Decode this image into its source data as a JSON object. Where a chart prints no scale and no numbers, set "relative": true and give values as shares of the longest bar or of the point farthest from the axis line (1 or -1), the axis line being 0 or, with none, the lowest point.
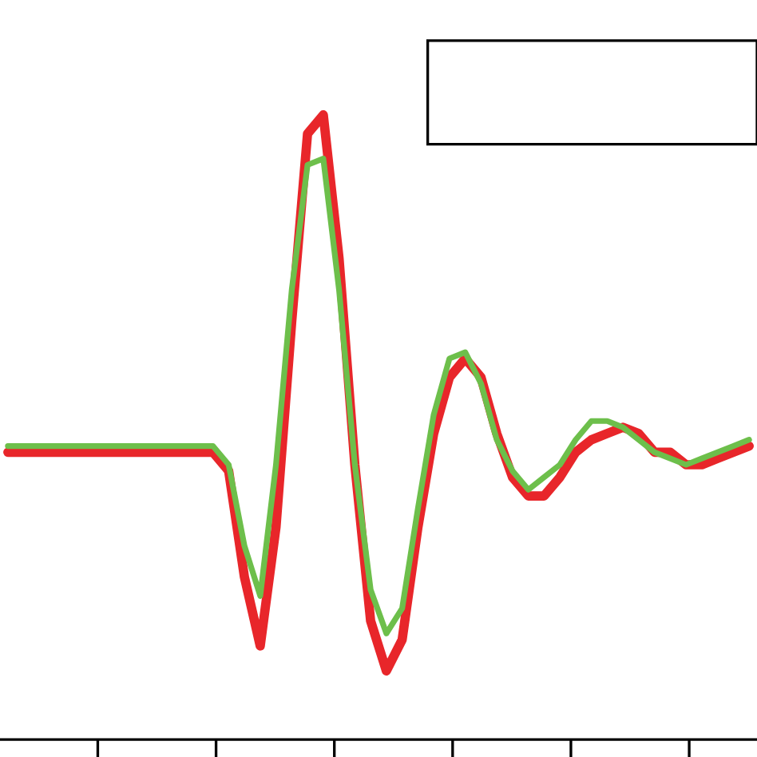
{
  "chart_data": {
    "type": "line",
    "relative": true,
    "categories": [
      null,
      null,
      null,
      null,
      null,
      null,
      null,
      null,
      null,
      null,
      null,
      null,
      null,
      null,
      null,
      null,
      null,
      null,
      null,
      null,
      null,
      null,
      null,
      null,
      null,
      null,
      null,
      null,
      null,
      null,
      null,
      null,
      null,
      null,
      null,
      null,
      null,
      null,
      null,
      null,
      null,
      null,
      null,
      null,
      null,
      null,
      null,
      null
    ],
    "series": [
      {
        "color": "#e8262a",
        "values": [
          0.46,
          0.46,
          0.46,
          0.46,
          0.46,
          0.46,
          0.46,
          0.46,
          0.46,
          0.46,
          0.46,
          0.46,
          0.46,
          0.46,
          0.43,
          0.26,
          0.15,
          0.34,
          0.67,
          0.97,
          1.0,
          0.77,
          0.44,
          0.19,
          0.11,
          0.16,
          0.34,
          0.49,
          0.58,
          0.61,
          0.58,
          0.49,
          0.42,
          0.39,
          0.39,
          0.42,
          0.46,
          0.48,
          0.49,
          0.5,
          0.49,
          0.46,
          0.46,
          0.44,
          0.44,
          0.45,
          0.46,
          0.47
        ]
      },
      {
        "color": "#6dbf4b",
        "values": [
          0.47,
          0.47,
          0.47,
          0.47,
          0.47,
          0.47,
          0.47,
          0.47,
          0.47,
          0.47,
          0.47,
          0.47,
          0.47,
          0.47,
          0.44,
          0.31,
          0.23,
          0.44,
          0.72,
          0.92,
          0.93,
          0.72,
          0.44,
          0.24,
          0.17,
          0.21,
          0.37,
          0.52,
          0.61,
          0.62,
          0.57,
          0.48,
          0.43,
          0.4,
          0.42,
          0.44,
          0.48,
          0.51,
          0.51,
          0.5,
          0.48,
          0.46,
          0.45,
          0.44,
          0.45,
          0.46,
          0.47,
          0.48
        ]
      }
    ],
    "marker": "none",
    "line_style": "solid",
    "grid": false,
    "legend": false
  }
}
